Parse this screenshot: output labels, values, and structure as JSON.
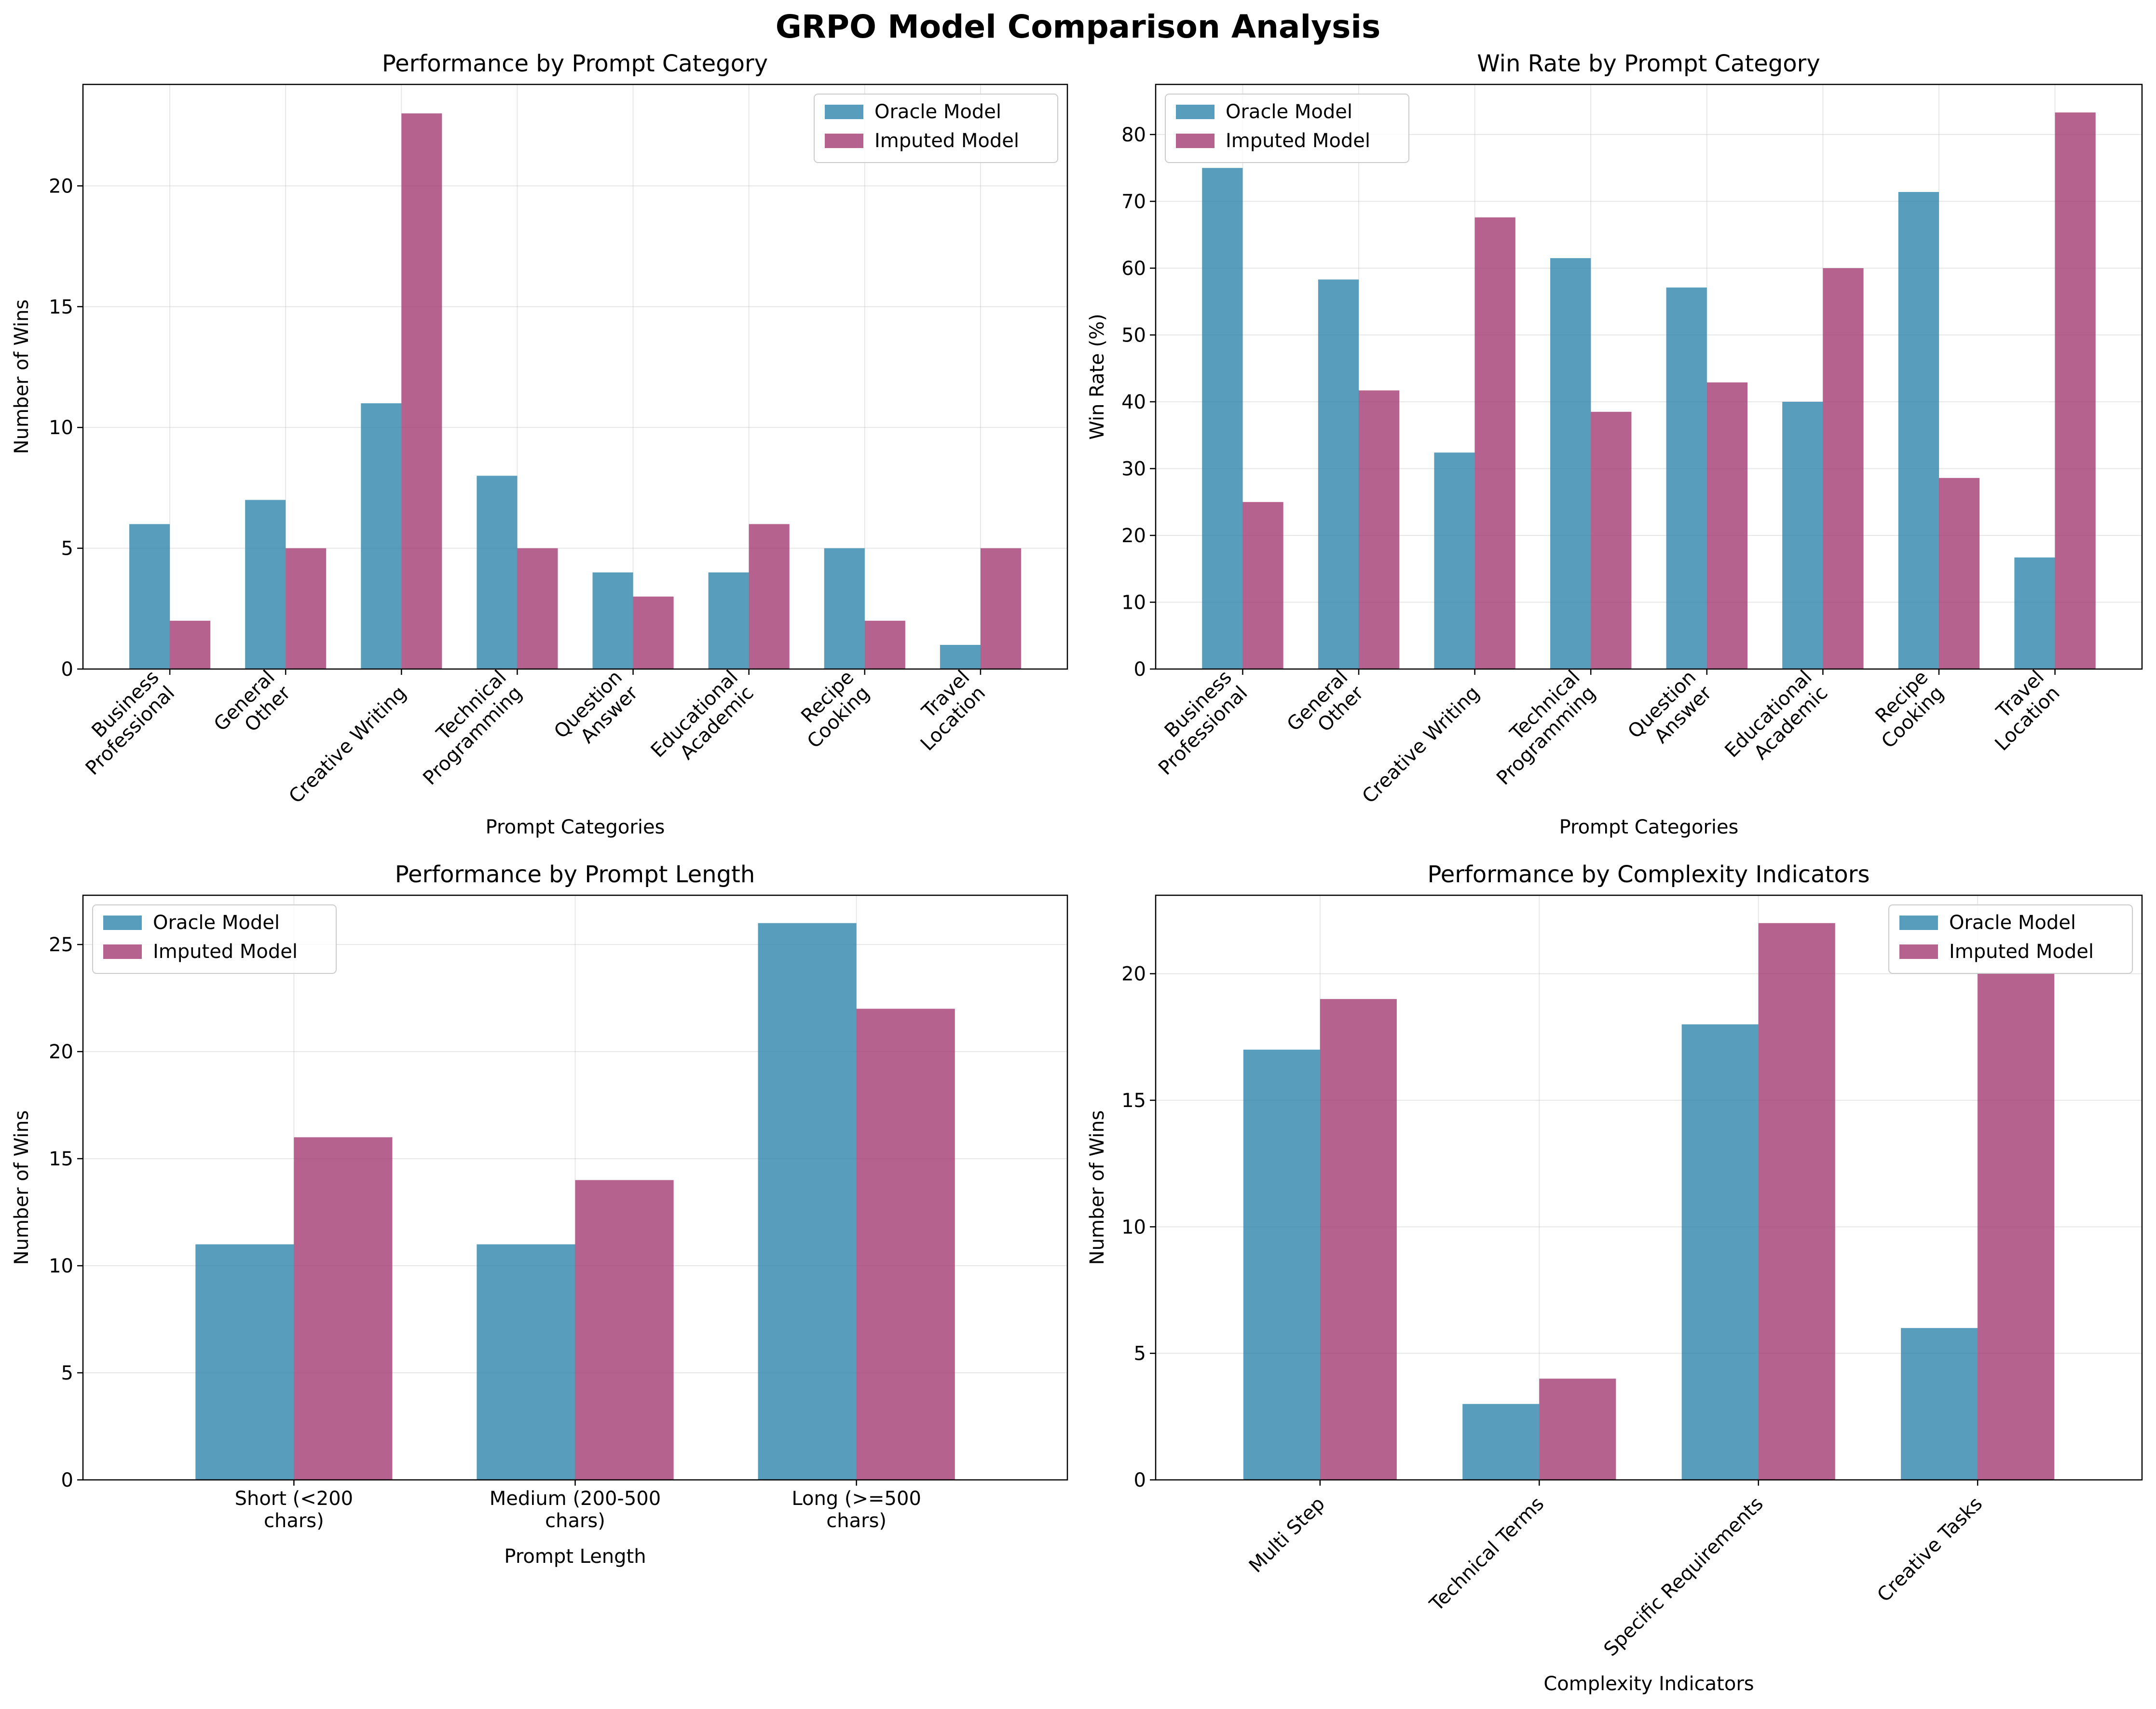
{
  "figure": {
    "title": "GRPO Model Comparison Analysis"
  },
  "colors": {
    "oracle": "#2E86AB",
    "imputed": "#A23B72"
  },
  "chart_data": [
    {
      "type": "bar",
      "title": "Performance by Prompt Category",
      "xlabel": "Prompt Categories",
      "ylabel": "Number of Wins",
      "categories": [
        "Business\nProfessional",
        "General\nOther",
        "Creative Writing",
        "Technical\nProgramming",
        "Question\nAnswer",
        "Educational\nAcademic",
        "Recipe\nCooking",
        "Travel\nLocation"
      ],
      "series": [
        {
          "name": "Oracle Model",
          "values": [
            6,
            7,
            11,
            8,
            4,
            4,
            5,
            1
          ]
        },
        {
          "name": "Imputed Model",
          "values": [
            2,
            5,
            23,
            5,
            3,
            6,
            2,
            5
          ]
        }
      ],
      "ylim": [
        0,
        24.2
      ],
      "yticks": [
        0,
        5,
        10,
        15,
        20
      ],
      "xtick_rotation": 45,
      "legend": "top-right",
      "grid": true
    },
    {
      "type": "bar",
      "title": "Win Rate by Prompt Category",
      "xlabel": "Prompt Categories",
      "ylabel": "Win Rate (%)",
      "categories": [
        "Business\nProfessional",
        "General\nOther",
        "Creative Writing",
        "Technical\nProgramming",
        "Question\nAnswer",
        "Educational\nAcademic",
        "Recipe\nCooking",
        "Travel\nLocation"
      ],
      "series": [
        {
          "name": "Oracle Model",
          "values": [
            75.0,
            58.3,
            32.4,
            61.5,
            57.1,
            40.0,
            71.4,
            16.7
          ]
        },
        {
          "name": "Imputed Model",
          "values": [
            25.0,
            41.7,
            67.6,
            38.5,
            42.9,
            60.0,
            28.6,
            83.3
          ]
        }
      ],
      "ylim": [
        0,
        87.5
      ],
      "yticks": [
        0,
        10,
        20,
        30,
        40,
        50,
        60,
        70,
        80
      ],
      "xtick_rotation": 45,
      "legend": "top-left",
      "grid": true
    },
    {
      "type": "bar",
      "title": "Performance by Prompt Length",
      "xlabel": "Prompt Length",
      "ylabel": "Number of Wins",
      "categories": [
        "Short (<200\nchars)",
        "Medium (200-500\nchars)",
        "Long (>=500\nchars)"
      ],
      "series": [
        {
          "name": "Oracle Model",
          "values": [
            11,
            11,
            26
          ]
        },
        {
          "name": "Imputed Model",
          "values": [
            16,
            14,
            22
          ]
        }
      ],
      "ylim": [
        0,
        27.3
      ],
      "yticks": [
        0,
        5,
        10,
        15,
        20,
        25
      ],
      "xtick_rotation": 0,
      "legend": "top-left",
      "grid": true
    },
    {
      "type": "bar",
      "title": "Performance by Complexity Indicators",
      "xlabel": "Complexity Indicators",
      "ylabel": "Number of Wins",
      "categories": [
        "Multi Step",
        "Technical Terms",
        "Specific Requirements",
        "Creative Tasks"
      ],
      "series": [
        {
          "name": "Oracle Model",
          "values": [
            17,
            3,
            18,
            6
          ]
        },
        {
          "name": "Imputed Model",
          "values": [
            19,
            4,
            22,
            20
          ]
        }
      ],
      "ylim": [
        0,
        23.1
      ],
      "yticks": [
        0,
        5,
        10,
        15,
        20
      ],
      "xtick_rotation": 45,
      "legend": "top-right",
      "grid": true
    }
  ]
}
